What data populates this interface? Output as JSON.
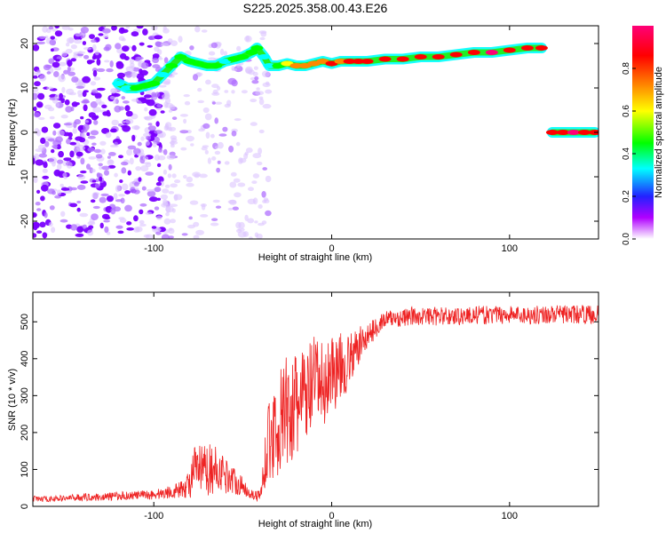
{
  "title": "S225.2025.358.00.43.E26",
  "chart_data": [
    {
      "type": "heatmap",
      "title": "",
      "xlabel": "Height of straight line (km)",
      "ylabel": "Frequency (Hz)",
      "xlim": [
        -168,
        150
      ],
      "ylim": [
        -24,
        24
      ],
      "xticks": [
        -100,
        0,
        100
      ],
      "yticks": [
        -20,
        -10,
        0,
        10,
        20
      ],
      "colorbar": {
        "label": "Normalized spectral amplitude",
        "range": [
          0,
          1
        ],
        "ticks": [
          0.0,
          0.2,
          0.4,
          0.6,
          0.8
        ],
        "colors": [
          "#ffffff",
          "#b000ff",
          "#2222ff",
          "#00ffff",
          "#00ff00",
          "#ffff00",
          "#ff8800",
          "#ff0000",
          "#ff0077"
        ]
      },
      "tracks": [
        {
          "points": [
            [
              -120,
              11,
              0.35
            ],
            [
              -115,
              10,
              0.4
            ],
            [
              -110,
              10,
              0.45
            ],
            [
              -105,
              10.5,
              0.45
            ],
            [
              -100,
              11,
              0.45
            ],
            [
              -95,
              13,
              0.4
            ],
            [
              -90,
              15,
              0.45
            ],
            [
              -85,
              17,
              0.5
            ],
            [
              -80,
              16,
              0.45
            ],
            [
              -75,
              15.5,
              0.45
            ],
            [
              -70,
              15,
              0.5
            ],
            [
              -65,
              15,
              0.45
            ],
            [
              -60,
              16,
              0.4
            ],
            [
              -55,
              16.5,
              0.45
            ],
            [
              -50,
              17,
              0.45
            ],
            [
              -45,
              18,
              0.45
            ],
            [
              -42,
              19,
              0.45
            ],
            [
              -38,
              17,
              0.4
            ],
            [
              -35,
              15,
              0.35
            ],
            [
              -30,
              15,
              0.45
            ],
            [
              -25,
              15.5,
              0.6
            ],
            [
              -20,
              15,
              0.7
            ],
            [
              -15,
              15,
              0.7
            ],
            [
              -10,
              15.5,
              0.75
            ],
            [
              -5,
              16,
              0.75
            ],
            [
              0,
              15.5,
              0.85
            ],
            [
              5,
              16,
              0.8
            ],
            [
              10,
              16,
              0.9
            ],
            [
              15,
              16,
              0.9
            ],
            [
              20,
              16,
              0.85
            ],
            [
              30,
              16.5,
              0.85
            ],
            [
              40,
              16.5,
              0.9
            ],
            [
              50,
              17,
              0.9
            ],
            [
              60,
              17,
              0.9
            ],
            [
              70,
              17.5,
              0.9
            ],
            [
              80,
              18,
              0.9
            ],
            [
              90,
              18,
              0.95
            ],
            [
              100,
              18.5,
              0.9
            ],
            [
              110,
              19,
              0.9
            ],
            [
              118,
              19,
              0.9
            ]
          ]
        },
        {
          "points": [
            [
              124,
              0,
              0.9
            ],
            [
              130,
              0,
              0.9
            ],
            [
              136,
              0,
              0.95
            ],
            [
              142,
              0,
              0.9
            ],
            [
              148,
              0,
              0.85
            ]
          ]
        }
      ]
    },
    {
      "type": "line",
      "title": "",
      "xlabel": "Height of straight line (km)",
      "ylabel": "SNR (10 * v/v)",
      "xlim": [
        -168,
        150
      ],
      "ylim": [
        0,
        580
      ],
      "xticks": [
        -100,
        0,
        100
      ],
      "yticks": [
        0,
        100,
        200,
        300,
        400,
        500
      ],
      "series": [
        {
          "color": "#ee2222",
          "x": [
            -168,
            -160,
            -150,
            -140,
            -130,
            -120,
            -110,
            -100,
            -95,
            -90,
            -85,
            -80,
            -78,
            -76,
            -72,
            -68,
            -64,
            -60,
            -56,
            -52,
            -48,
            -44,
            -42,
            -40,
            -38,
            -36,
            -34,
            -32,
            -30,
            -28,
            -26,
            -24,
            -22,
            -20,
            -18,
            -16,
            -14,
            -12,
            -10,
            -8,
            -6,
            -4,
            -2,
            0,
            2,
            4,
            6,
            8,
            10,
            12,
            14,
            16,
            18,
            20,
            22,
            24,
            26,
            28,
            30,
            35,
            40,
            45,
            50,
            60,
            70,
            80,
            90,
            100,
            110,
            120,
            130,
            140,
            150
          ],
          "values": [
            20,
            20,
            22,
            25,
            25,
            28,
            30,
            32,
            35,
            40,
            45,
            60,
            90,
            100,
            95,
            100,
            100,
            85,
            75,
            60,
            45,
            30,
            28,
            30,
            100,
            180,
            170,
            220,
            210,
            240,
            260,
            250,
            270,
            260,
            280,
            300,
            290,
            320,
            330,
            340,
            330,
            320,
            350,
            380,
            360,
            370,
            390,
            380,
            400,
            410,
            420,
            440,
            450,
            460,
            470,
            480,
            490,
            500,
            505,
            510,
            510,
            515,
            515,
            515,
            515,
            518,
            518,
            520,
            518,
            520,
            520,
            520,
            520
          ],
          "noise": [
            8,
            8,
            8,
            10,
            10,
            12,
            12,
            14,
            16,
            18,
            22,
            40,
            60,
            70,
            70,
            70,
            60,
            50,
            40,
            30,
            20,
            15,
            15,
            20,
            60,
            100,
            110,
            130,
            140,
            140,
            150,
            150,
            150,
            150,
            140,
            140,
            140,
            130,
            130,
            120,
            120,
            110,
            110,
            100,
            100,
            90,
            90,
            80,
            70,
            60,
            60,
            50,
            40,
            35,
            30,
            30,
            25,
            25,
            25,
            25,
            25,
            25,
            25,
            25,
            25,
            25,
            25,
            25,
            25,
            25,
            25,
            25,
            25
          ]
        }
      ]
    }
  ]
}
